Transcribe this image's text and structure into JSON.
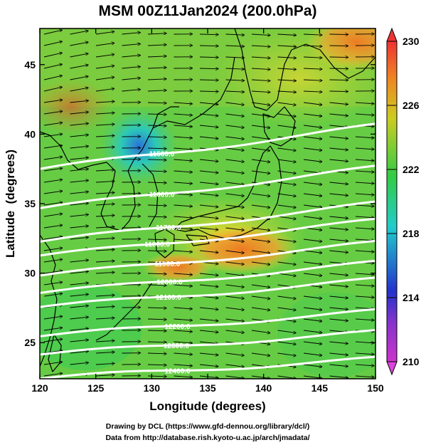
{
  "chart_data": {
    "type": "heatmap",
    "title": "MSM 00Z11Jan2024 (200.0hPa)",
    "xlabel": "Longitude (degrees)",
    "ylabel": "Latitude  (degrees)",
    "xlim": [
      120,
      150
    ],
    "ylim": [
      22.4,
      47.6
    ],
    "xticks": [
      120,
      125,
      130,
      135,
      140,
      145,
      150
    ],
    "yticks": [
      25,
      30,
      35,
      40,
      45
    ],
    "colorbar": {
      "min": 210,
      "max": 230,
      "ticks": [
        210,
        214,
        218,
        222,
        226,
        230
      ],
      "colors": [
        "#cc33cc",
        "#2233cc",
        "#22cccc",
        "#33cc44",
        "#cccc22",
        "#ee8822",
        "#ee3333"
      ]
    },
    "contours": [
      {
        "label": "11500.0",
        "label_lon": 130.9,
        "label_lat": 38.6
      },
      {
        "label": "11600.0",
        "label_lon": 130.9,
        "label_lat": 35.7
      },
      {
        "label": "11700.0",
        "label_lon": 131.5,
        "label_lat": 33.3
      },
      {
        "label": "11800.0",
        "label_lon": 130.5,
        "label_lat": 32.1
      },
      {
        "label": "11900.0",
        "label_lon": 131.4,
        "label_lat": 30.7
      },
      {
        "label": "12000.0",
        "label_lon": 131.6,
        "label_lat": 29.4
      },
      {
        "label": "12100.0",
        "label_lon": 131.5,
        "label_lat": 28.3
      },
      {
        "label": "12200.0",
        "label_lon": 132.3,
        "label_lat": 26.2
      },
      {
        "label": "12300.0",
        "label_lon": 132.2,
        "label_lat": 24.8
      },
      {
        "label": "12400.0",
        "label_lon": 132.3,
        "label_lat": 23.0
      }
    ]
  },
  "credits": {
    "line1": "Drawing by DCL (https://www.gfd-dennou.org/library/dcl/)",
    "line2": "Data from http://database.rish.kyoto-u.ac.jp/arch/jmadata/"
  }
}
